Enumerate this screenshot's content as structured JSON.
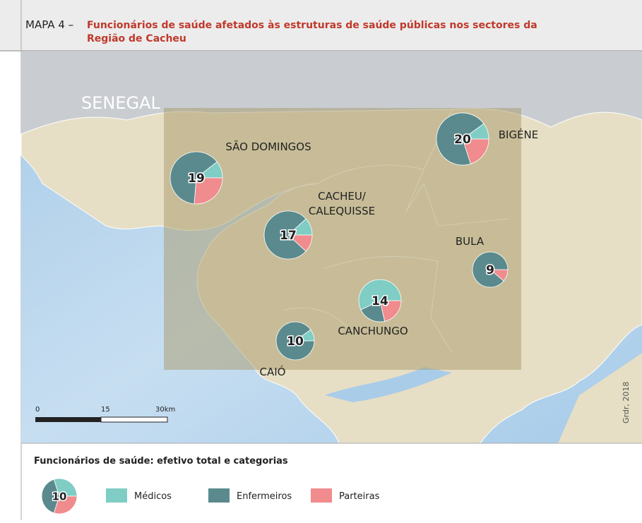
{
  "header": {
    "label": "MAPA 4 –",
    "title_lines": [
      "Funcionários de saúde afetados às estruturas de saúde públicas nos sectores da",
      "Região de Cacheu"
    ]
  },
  "map": {
    "country": "SENEGAL",
    "credit": "Grdr, 2018",
    "scale": [
      "0",
      "15",
      "30km"
    ],
    "sectors": [
      {
        "name_lines": [
          "SÃO DOMINGOS"
        ],
        "total": 19,
        "medicos": 2,
        "enfermeiros": 12,
        "parteiras": 5
      },
      {
        "name_lines": [
          "BIGÉNE"
        ],
        "total": 20,
        "medicos": 2,
        "enfermeiros": 14,
        "parteiras": 4
      },
      {
        "name_lines": [
          "CACHEU/",
          "CALEQUISSE"
        ],
        "total": 17,
        "medicos": 2,
        "enfermeiros": 13,
        "parteiras": 2
      },
      {
        "name_lines": [
          "BULA"
        ],
        "total": 9,
        "medicos": 0,
        "enfermeiros": 8,
        "parteiras": 1
      },
      {
        "name_lines": [
          "CANCHUNGO"
        ],
        "total": 14,
        "medicos": 8,
        "enfermeiros": 3,
        "parteiras": 3
      },
      {
        "name_lines": [
          "CAIÓ"
        ],
        "total": 10,
        "medicos": 1,
        "enfermeiros": 9,
        "parteiras": 0
      }
    ]
  },
  "legend": {
    "title": "Funcionários de saúde: efetivo total e categorias",
    "example": {
      "total": 10,
      "medicos": 3,
      "enfermeiros": 4,
      "parteiras": 3
    },
    "items": [
      {
        "name": "Médicos",
        "color": "#7fcdc4"
      },
      {
        "name": "Enfermeiros",
        "color": "#5a8a8e"
      },
      {
        "name": "Parteiras",
        "color": "#f08b8e"
      }
    ]
  }
}
